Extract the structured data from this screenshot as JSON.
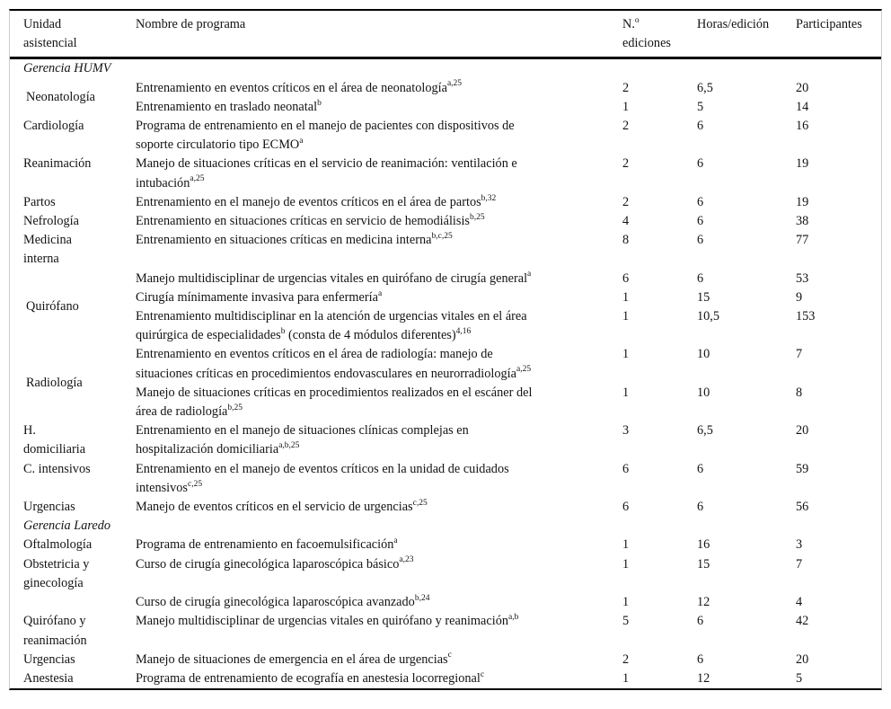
{
  "colors": {
    "background": "#ffffff",
    "text": "#131313",
    "rule": "#000000",
    "side_border": "#cccccc"
  },
  "table": {
    "header": [
      {
        "id": "unidad-asistencial",
        "parts": [
          {
            "t": "Unidad"
          },
          {
            "b": 1
          },
          {
            "t": "asistencial"
          }
        ]
      },
      {
        "id": "nombre-programa",
        "parts": [
          {
            "t": "Nombre de programa"
          }
        ]
      },
      {
        "id": "num-ediciones",
        "parts": [
          {
            "t": "N."
          },
          {
            "s": "o"
          },
          {
            "b": 1
          },
          {
            "t": "ediciones"
          }
        ]
      },
      {
        "id": "horas-edicion",
        "parts": [
          {
            "t": "Horas/edición"
          }
        ]
      },
      {
        "id": "participantes",
        "parts": [
          {
            "t": "Participantes"
          }
        ]
      }
    ],
    "sections": [
      {
        "title": "Gerencia HUMV",
        "groups": [
          {
            "unit": [
              {
                "t": "Neonatología"
              }
            ],
            "middle": true,
            "rows": [
              {
                "program": [
                  {
                    "t": "Entrenamiento en eventos críticos en el área de neonatología"
                  },
                  {
                    "s": "a,25"
                  }
                ],
                "editions": "2",
                "hours": "6,5",
                "participants": "20"
              },
              {
                "program": [
                  {
                    "t": "Entrenamiento en traslado neonatal"
                  },
                  {
                    "s": "b"
                  }
                ],
                "editions": "1",
                "hours": "5",
                "participants": "14"
              }
            ]
          },
          {
            "unit": [
              {
                "t": "Cardiología"
              }
            ],
            "middle": false,
            "rows": [
              {
                "program": [
                  {
                    "t": "Programa de entrenamiento en el manejo de pacientes con dispositivos de"
                  },
                  {
                    "b": 1
                  },
                  {
                    "t": "soporte circulatorio tipo ECMO"
                  },
                  {
                    "s": "a"
                  }
                ],
                "editions": "2",
                "hours": "6",
                "participants": "16"
              }
            ]
          },
          {
            "unit": [
              {
                "t": "Reanimación"
              }
            ],
            "middle": false,
            "rows": [
              {
                "program": [
                  {
                    "t": "Manejo de situaciones críticas en el servicio de reanimación: ventilación e"
                  },
                  {
                    "b": 1
                  },
                  {
                    "t": "intubación"
                  },
                  {
                    "s": "a,25"
                  }
                ],
                "editions": "2",
                "hours": "6",
                "participants": "19"
              }
            ]
          },
          {
            "unit": [
              {
                "t": "Partos"
              }
            ],
            "middle": false,
            "rows": [
              {
                "program": [
                  {
                    "t": "Entrenamiento en el manejo de eventos críticos en el área de partos"
                  },
                  {
                    "s": "b,32"
                  }
                ],
                "editions": "2",
                "hours": "6",
                "participants": "19"
              }
            ]
          },
          {
            "unit": [
              {
                "t": "Nefrología"
              }
            ],
            "middle": false,
            "rows": [
              {
                "program": [
                  {
                    "t": "Entrenamiento en situaciones críticas en servicio de hemodiálisis"
                  },
                  {
                    "s": "b,25"
                  }
                ],
                "editions": "4",
                "hours": "6",
                "participants": "38"
              }
            ]
          },
          {
            "unit": [
              {
                "t": "Medicina"
              },
              {
                "b": 1
              },
              {
                "t": "interna"
              }
            ],
            "middle": false,
            "rows": [
              {
                "program": [
                  {
                    "t": "Entrenamiento en situaciones críticas en medicina interna"
                  },
                  {
                    "s": "b,c,25"
                  }
                ],
                "editions": "8",
                "hours": "6",
                "participants": "77"
              }
            ]
          },
          {
            "unit": [
              {
                "t": "Quirófano"
              }
            ],
            "middle": true,
            "rows": [
              {
                "program": [
                  {
                    "t": "Manejo multidisciplinar de urgencias vitales en quirófano de cirugía general"
                  },
                  {
                    "s": "a"
                  }
                ],
                "editions": "6",
                "hours": "6",
                "participants": "53"
              },
              {
                "program": [
                  {
                    "t": "Cirugía mínimamente invasiva para enfermería"
                  },
                  {
                    "s": "a"
                  }
                ],
                "editions": "1",
                "hours": "15",
                "participants": "9"
              },
              {
                "program": [
                  {
                    "t": "Entrenamiento multidisciplinar en la atención de urgencias vitales en el área"
                  },
                  {
                    "b": 1
                  },
                  {
                    "t": "quirúrgica de especialidades"
                  },
                  {
                    "s": "b"
                  },
                  {
                    "t": " (consta de 4 módulos diferentes)"
                  },
                  {
                    "s": "4,16"
                  }
                ],
                "editions": "1",
                "hours": "10,5",
                "participants": "153"
              }
            ]
          },
          {
            "unit": [
              {
                "t": "Radiología"
              }
            ],
            "middle": true,
            "rows": [
              {
                "program": [
                  {
                    "t": "Entrenamiento en eventos críticos en el área de radiología: manejo de"
                  },
                  {
                    "b": 1
                  },
                  {
                    "t": "situaciones críticas en procedimientos endovasculares en neurorradiología"
                  },
                  {
                    "s": "a,25"
                  }
                ],
                "editions": "1",
                "hours": "10",
                "participants": "7"
              },
              {
                "program": [
                  {
                    "t": "Manejo de situaciones críticas en procedimientos realizados en el escáner del"
                  },
                  {
                    "b": 1
                  },
                  {
                    "t": "área de radiología"
                  },
                  {
                    "s": "b,25"
                  }
                ],
                "editions": "1",
                "hours": "10",
                "participants": "8"
              }
            ]
          },
          {
            "unit": [
              {
                "t": "H."
              },
              {
                "b": 1
              },
              {
                "t": "domiciliaria"
              }
            ],
            "middle": false,
            "rows": [
              {
                "program": [
                  {
                    "t": "Entrenamiento en el manejo de situaciones clínicas complejas en"
                  },
                  {
                    "b": 1
                  },
                  {
                    "t": "hospitalización domiciliaria"
                  },
                  {
                    "s": "a,b,25"
                  }
                ],
                "editions": "3",
                "hours": "6,5",
                "participants": "20"
              }
            ]
          },
          {
            "unit": [
              {
                "t": "C. intensivos"
              }
            ],
            "middle": false,
            "rows": [
              {
                "program": [
                  {
                    "t": "Entrenamiento en el manejo de eventos críticos en la unidad de cuidados"
                  },
                  {
                    "b": 1
                  },
                  {
                    "t": "intensivos"
                  },
                  {
                    "s": "c,25"
                  }
                ],
                "editions": "6",
                "hours": "6",
                "participants": "59"
              }
            ]
          },
          {
            "unit": [
              {
                "t": "Urgencias"
              }
            ],
            "middle": false,
            "rows": [
              {
                "program": [
                  {
                    "t": "Manejo de eventos críticos en el servicio de urgencias"
                  },
                  {
                    "s": "c,25"
                  }
                ],
                "editions": "6",
                "hours": "6",
                "participants": "56"
              }
            ]
          }
        ]
      },
      {
        "title": "Gerencia Laredo",
        "groups": [
          {
            "unit": [
              {
                "t": "Oftalmología"
              }
            ],
            "middle": false,
            "rows": [
              {
                "program": [
                  {
                    "t": "Programa de entrenamiento en facoemulsificación"
                  },
                  {
                    "s": "a"
                  }
                ],
                "editions": "1",
                "hours": "16",
                "participants": "3"
              }
            ]
          },
          {
            "unit": [
              {
                "t": "Obstetricia y"
              },
              {
                "b": 1
              },
              {
                "t": "ginecología"
              }
            ],
            "middle": false,
            "rows": [
              {
                "program": [
                  {
                    "t": "Curso de cirugía ginecológica laparoscópica básico"
                  },
                  {
                    "s": "a,23"
                  }
                ],
                "editions": "1",
                "hours": "15",
                "participants": "7"
              }
            ]
          },
          {
            "unit": [],
            "middle": false,
            "rows": [
              {
                "program": [
                  {
                    "t": "Curso de cirugía ginecológica laparoscópica avanzado"
                  },
                  {
                    "s": "b,24"
                  }
                ],
                "editions": "1",
                "hours": "12",
                "participants": "4"
              }
            ]
          },
          {
            "unit": [
              {
                "t": "Quirófano y"
              },
              {
                "b": 1
              },
              {
                "t": "reanimación"
              }
            ],
            "middle": false,
            "rows": [
              {
                "program": [
                  {
                    "t": "Manejo multidisciplinar de urgencias vitales en quirófano y reanimación"
                  },
                  {
                    "s": "a,b"
                  }
                ],
                "editions": "5",
                "hours": "6",
                "participants": "42"
              }
            ]
          },
          {
            "unit": [
              {
                "t": "Urgencias"
              }
            ],
            "middle": false,
            "rows": [
              {
                "program": [
                  {
                    "t": "Manejo de situaciones de emergencia en el área de urgencias"
                  },
                  {
                    "s": "c"
                  }
                ],
                "editions": "2",
                "hours": "6",
                "participants": "20"
              }
            ]
          },
          {
            "unit": [
              {
                "t": "Anestesia"
              }
            ],
            "middle": false,
            "rows": [
              {
                "program": [
                  {
                    "t": "Programa de entrenamiento de ecografía en anestesia locorregional"
                  },
                  {
                    "s": "c"
                  }
                ],
                "editions": "1",
                "hours": "12",
                "participants": "5"
              }
            ]
          }
        ]
      }
    ]
  }
}
